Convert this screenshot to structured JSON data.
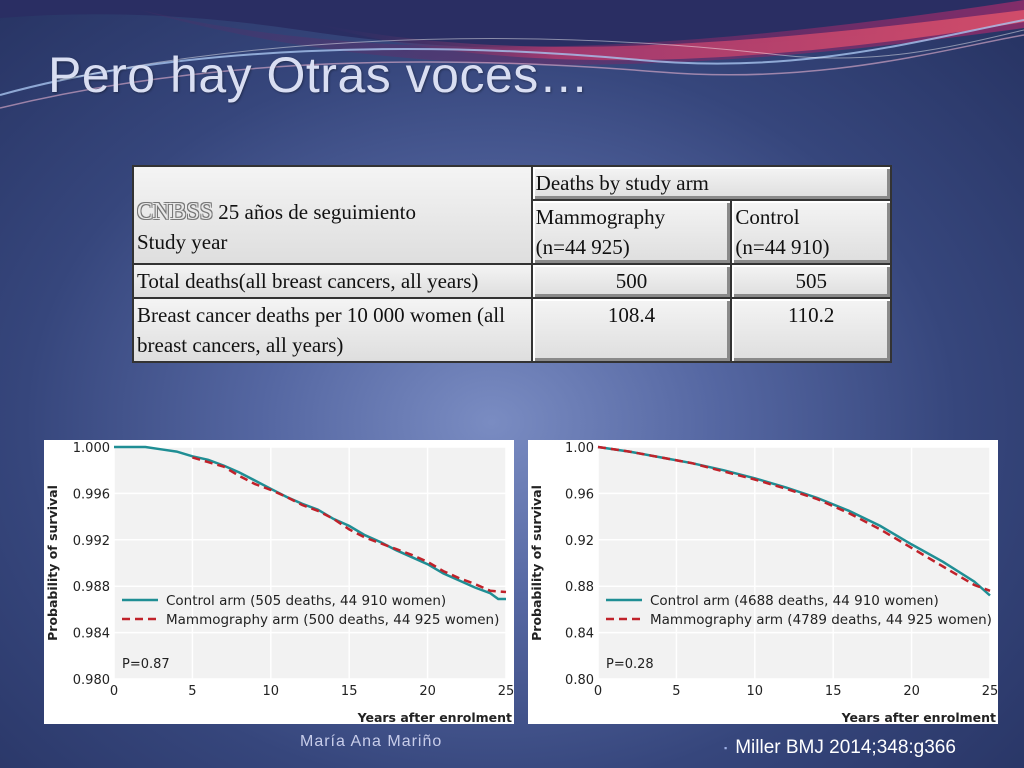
{
  "slide": {
    "title": "Pero hay Otras voces…",
    "author": "María Ana Mariño",
    "citation_bullet": "▪",
    "citation": "Miller  BMJ 2014;348:g366"
  },
  "colors": {
    "control_arm": "#1f8e94",
    "mammography_arm": "#c0222a",
    "title_text": "#d9def2"
  },
  "table": {
    "header": {
      "cnbss": "CNBSS",
      "follow_up": "25 años de seguimiento",
      "study_year": "Study year",
      "deaths_by_arm": "Deaths by study arm",
      "mammography": "Mammography",
      "mammography_n": "(n=44 925)",
      "control": "Control",
      "control_n": "(n=44 910)"
    },
    "rows": [
      {
        "label": "Total deaths(all breast cancers, all years)",
        "mammography": "500",
        "control": "505"
      },
      {
        "label": "Breast cancer deaths per 10 000 women (all breast cancers, all years)",
        "mammography": "108.4",
        "control": "110.2"
      }
    ]
  },
  "chart_data": [
    {
      "type": "line",
      "xlabel": "Years after enrolment",
      "ylabel": "Probability of survival",
      "xlim": [
        0,
        25
      ],
      "ylim": [
        0.98,
        1.0
      ],
      "x_ticks": [
        "0",
        "5",
        "10",
        "15",
        "20",
        "25"
      ],
      "y_ticks": [
        "1.000",
        "0.996",
        "0.992",
        "0.988",
        "0.984",
        "0.980"
      ],
      "annotation": "P=0.87",
      "legend_position": "lower-left",
      "grid": true,
      "series": [
        {
          "name": "Control arm (505 deaths, 44 910 women)",
          "style": "solid",
          "color": "#1f8e94",
          "x": [
            0,
            1,
            2,
            3,
            4,
            5,
            6,
            7,
            8,
            9,
            10,
            11,
            12,
            13,
            14,
            15,
            16,
            17,
            18,
            19,
            20,
            21,
            22,
            23,
            24,
            24.5,
            25
          ],
          "y": [
            1.0,
            1.0,
            1.0,
            0.9998,
            0.9996,
            0.9992,
            0.9989,
            0.9984,
            0.9978,
            0.9971,
            0.9964,
            0.9957,
            0.9951,
            0.9946,
            0.9938,
            0.9932,
            0.9924,
            0.9918,
            0.9911,
            0.9905,
            0.9899,
            0.9891,
            0.9885,
            0.9879,
            0.9874,
            0.9869,
            0.9869
          ]
        },
        {
          "name": "Mammography arm (500 deaths, 44 925 women)",
          "style": "dashed",
          "color": "#c0222a",
          "x": [
            5,
            6,
            7,
            8,
            9,
            10,
            11,
            12,
            13,
            14,
            15,
            16,
            17,
            18,
            19,
            20,
            21,
            22,
            23,
            24,
            25
          ],
          "y": [
            0.9991,
            0.9987,
            0.9983,
            0.9975,
            0.9968,
            0.9963,
            0.9957,
            0.995,
            0.9945,
            0.9938,
            0.9929,
            0.9922,
            0.9917,
            0.9912,
            0.9907,
            0.9901,
            0.9893,
            0.9887,
            0.9882,
            0.9876,
            0.9875
          ]
        }
      ]
    },
    {
      "type": "line",
      "xlabel": "Years after enrolment",
      "ylabel": "Probability of survival",
      "xlim": [
        0,
        25
      ],
      "ylim": [
        0.8,
        1.0
      ],
      "x_ticks": [
        "0",
        "5",
        "10",
        "15",
        "20",
        "25"
      ],
      "y_ticks": [
        "1.00",
        "0.96",
        "0.92",
        "0.88",
        "0.84",
        "0.80"
      ],
      "annotation": "P=0.28",
      "legend_position": "lower-left",
      "grid": true,
      "series": [
        {
          "name": "Control arm (4688 deaths, 44 910 women)",
          "style": "solid",
          "color": "#1f8e94",
          "x": [
            0,
            2,
            4,
            6,
            8,
            10,
            12,
            14,
            16,
            18,
            20,
            22,
            24,
            25
          ],
          "y": [
            1.0,
            0.996,
            0.991,
            0.986,
            0.98,
            0.973,
            0.965,
            0.956,
            0.945,
            0.932,
            0.916,
            0.901,
            0.884,
            0.872
          ]
        },
        {
          "name": "Mammography arm (4789 deaths, 44 925 women)",
          "style": "dashed",
          "color": "#c0222a",
          "x": [
            0,
            2,
            4,
            6,
            8,
            10,
            12,
            14,
            16,
            18,
            20,
            22,
            24,
            25
          ],
          "y": [
            1.0,
            0.996,
            0.991,
            0.986,
            0.979,
            0.972,
            0.964,
            0.955,
            0.943,
            0.929,
            0.913,
            0.897,
            0.881,
            0.876
          ]
        }
      ]
    }
  ]
}
